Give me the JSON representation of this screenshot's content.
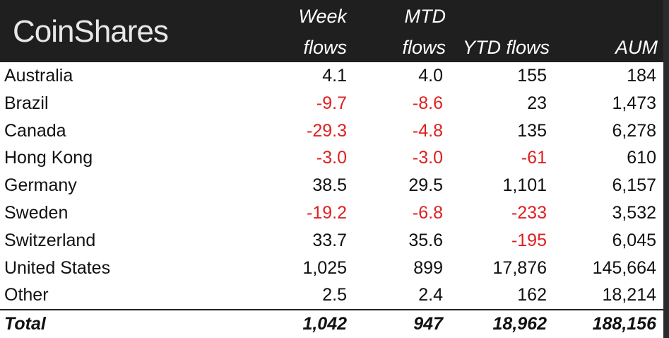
{
  "brand": "CoinShares",
  "headers": {
    "week_line1": "Week",
    "week_line2": "flows",
    "mtd_line1": "MTD",
    "mtd_line2": "flows",
    "ytd": "YTD flows",
    "aum": "AUM"
  },
  "rows": [
    {
      "name": "Australia",
      "week": "4.1",
      "mtd": "4.0",
      "ytd": "155",
      "aum": "184"
    },
    {
      "name": "Brazil",
      "week": "-9.7",
      "mtd": "-8.6",
      "ytd": "23",
      "aum": "1,473"
    },
    {
      "name": "Canada",
      "week": "-29.3",
      "mtd": "-4.8",
      "ytd": "135",
      "aum": "6,278"
    },
    {
      "name": "Hong Kong",
      "week": "-3.0",
      "mtd": "-3.0",
      "ytd": "-61",
      "aum": "610"
    },
    {
      "name": "Germany",
      "week": "38.5",
      "mtd": "29.5",
      "ytd": "1,101",
      "aum": "6,157"
    },
    {
      "name": "Sweden",
      "week": "-19.2",
      "mtd": "-6.8",
      "ytd": "-233",
      "aum": "3,532"
    },
    {
      "name": "Switzerland",
      "week": "33.7",
      "mtd": "35.6",
      "ytd": "-195",
      "aum": "6,045"
    },
    {
      "name": "United States",
      "week": "1,025",
      "mtd": "899",
      "ytd": "17,876",
      "aum": "145,664"
    },
    {
      "name": "Other",
      "week": "2.5",
      "mtd": "2.4",
      "ytd": "162",
      "aum": "18,214"
    }
  ],
  "total": {
    "name": "Total",
    "week": "1,042",
    "mtd": "947",
    "ytd": "18,962",
    "aum": "188,156"
  },
  "colors": {
    "negative": "#e02020",
    "header_bg": "#1f1f1f"
  }
}
